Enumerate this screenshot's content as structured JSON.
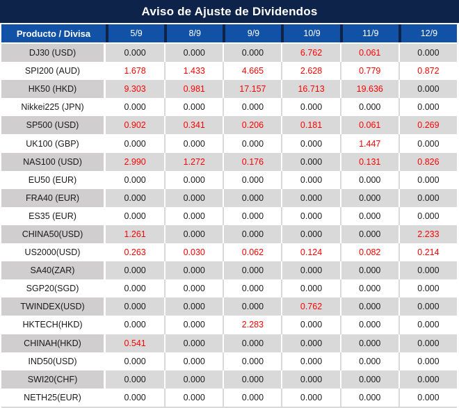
{
  "chart_data": {
    "type": "table",
    "title": "Aviso de Ajuste de Dividendos",
    "columns": [
      "Producto / Divisa",
      "5/9",
      "8/9",
      "9/9",
      "10/9",
      "11/9",
      "12/9"
    ],
    "rows": [
      {
        "product": "DJ30 (USD)",
        "values": [
          "0.000",
          "0.000",
          "0.000",
          "6.762",
          "0.061",
          "0.000"
        ]
      },
      {
        "product": "SPI200 (AUD)",
        "values": [
          "1.678",
          "1.433",
          "4.665",
          "2.628",
          "0.779",
          "0.872"
        ]
      },
      {
        "product": "HK50 (HKD)",
        "values": [
          "9.303",
          "0.981",
          "17.157",
          "16.713",
          "19.636",
          "0.000"
        ]
      },
      {
        "product": "Nikkei225 (JPN)",
        "values": [
          "0.000",
          "0.000",
          "0.000",
          "0.000",
          "0.000",
          "0.000"
        ]
      },
      {
        "product": "SP500 (USD)",
        "values": [
          "0.902",
          "0.341",
          "0.206",
          "0.181",
          "0.061",
          "0.269"
        ]
      },
      {
        "product": "UK100 (GBP)",
        "values": [
          "0.000",
          "0.000",
          "0.000",
          "0.000",
          "1.447",
          "0.000"
        ]
      },
      {
        "product": "NAS100 (USD)",
        "values": [
          "2.990",
          "1.272",
          "0.176",
          "0.000",
          "0.131",
          "0.826"
        ]
      },
      {
        "product": "EU50 (EUR)",
        "values": [
          "0.000",
          "0.000",
          "0.000",
          "0.000",
          "0.000",
          "0.000"
        ]
      },
      {
        "product": "FRA40 (EUR)",
        "values": [
          "0.000",
          "0.000",
          "0.000",
          "0.000",
          "0.000",
          "0.000"
        ]
      },
      {
        "product": "ES35 (EUR)",
        "values": [
          "0.000",
          "0.000",
          "0.000",
          "0.000",
          "0.000",
          "0.000"
        ]
      },
      {
        "product": "CHINA50(USD)",
        "values": [
          "1.261",
          "0.000",
          "0.000",
          "0.000",
          "0.000",
          "2.233"
        ]
      },
      {
        "product": "US2000(USD)",
        "values": [
          "0.263",
          "0.030",
          "0.062",
          "0.124",
          "0.082",
          "0.214"
        ]
      },
      {
        "product": "SA40(ZAR)",
        "values": [
          "0.000",
          "0.000",
          "0.000",
          "0.000",
          "0.000",
          "0.000"
        ]
      },
      {
        "product": "SGP20(SGD)",
        "values": [
          "0.000",
          "0.000",
          "0.000",
          "0.000",
          "0.000",
          "0.000"
        ]
      },
      {
        "product": "TWINDEX(USD)",
        "values": [
          "0.000",
          "0.000",
          "0.000",
          "0.762",
          "0.000",
          "0.000"
        ]
      },
      {
        "product": "HKTECH(HKD)",
        "values": [
          "0.000",
          "0.000",
          "2.283",
          "0.000",
          "0.000",
          "0.000"
        ]
      },
      {
        "product": "CHINAH(HKD)",
        "values": [
          "0.541",
          "0.000",
          "0.000",
          "0.000",
          "0.000",
          "0.000"
        ]
      },
      {
        "product": "IND50(USD)",
        "values": [
          "0.000",
          "0.000",
          "0.000",
          "0.000",
          "0.000",
          "0.000"
        ]
      },
      {
        "product": "SWI20(CHF)",
        "values": [
          "0.000",
          "0.000",
          "0.000",
          "0.000",
          "0.000",
          "0.000"
        ]
      },
      {
        "product": "NETH25(EUR)",
        "values": [
          "0.000",
          "0.000",
          "0.000",
          "0.000",
          "0.000",
          "0.000"
        ]
      }
    ],
    "layout": {
      "striped": true,
      "first_data_row_shaded": true,
      "nonzero_values_red": true
    },
    "colors": {
      "title_bg": "#0D2349",
      "header_bg": "#1152A7",
      "header_text": "#FFFFFF",
      "shaded_product_bg": "#D0CECE",
      "shaded_value_bg": "#D9D9D9",
      "positive_value_red": "#FF0000",
      "value_text": "#1A1A1A"
    }
  }
}
